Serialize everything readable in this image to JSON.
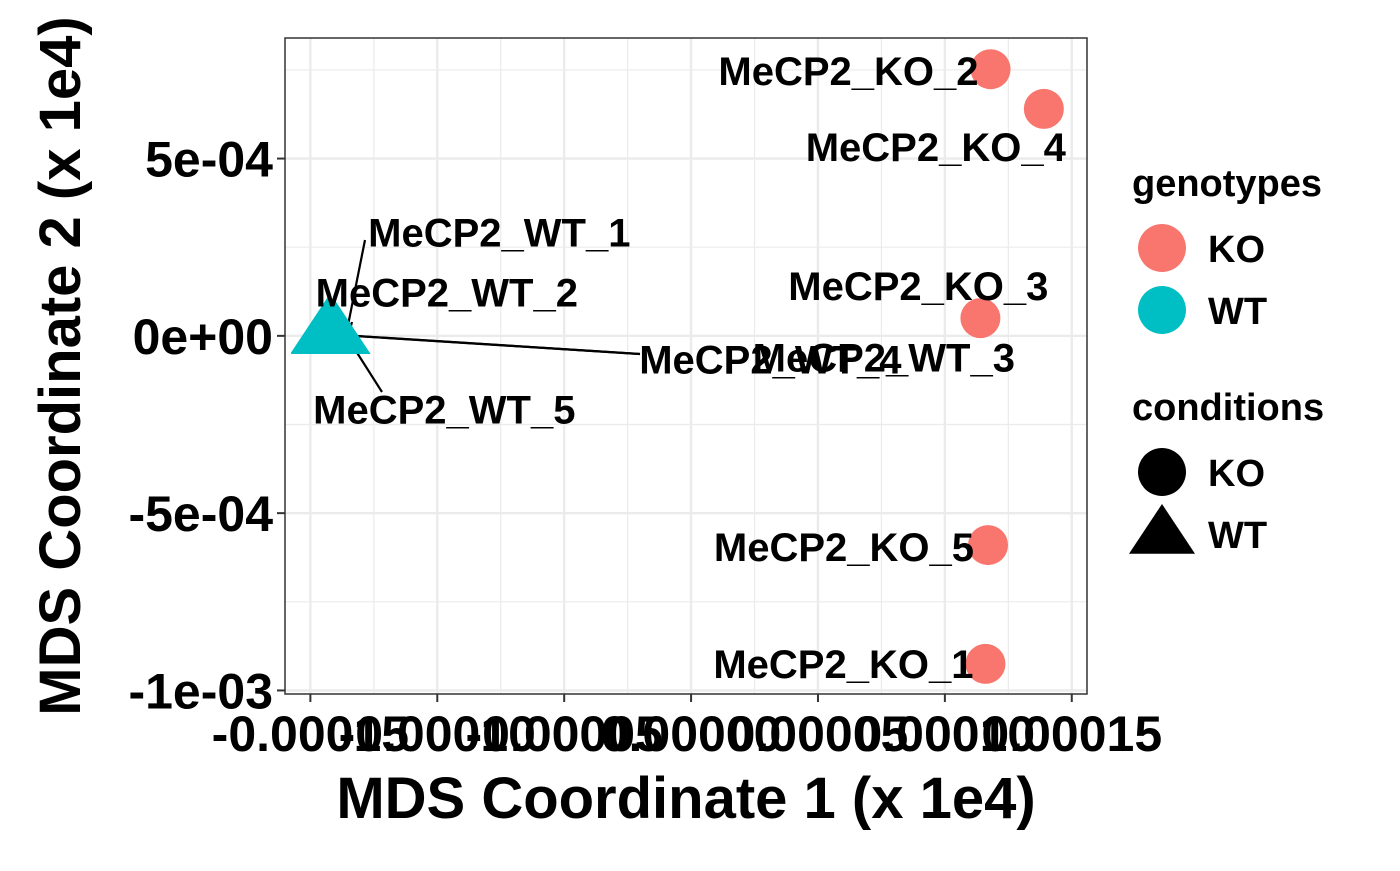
{
  "colors": {
    "KO": "#F8766D",
    "WT": "#00BFC4",
    "grid": "#EBEBEB",
    "panel_border": "#333333"
  },
  "chart_data": {
    "type": "scatter",
    "title": "",
    "xlabel": "MDS Coordinate 1 (x 1e4)",
    "ylabel": "MDS Coordinate 2 (x 1e4)",
    "xlim": [
      -0.00016,
      0.000156
    ],
    "ylim": [
      -0.00101,
      0.00084
    ],
    "x_ticks": [
      {
        "value": -0.00015,
        "label": "-0.00015"
      },
      {
        "value": -0.0001,
        "label": "-0.00010"
      },
      {
        "value": -5e-05,
        "label": "-0.00005"
      },
      {
        "value": 0.0,
        "label": "0.00000"
      },
      {
        "value": 5e-05,
        "label": "0.00005"
      },
      {
        "value": 0.0001,
        "label": "0.00010"
      },
      {
        "value": 0.00015,
        "label": "0.00015"
      }
    ],
    "y_ticks": [
      {
        "value": 0.0005,
        "label": "5e-04"
      },
      {
        "value": 0.0,
        "label": "0e+00"
      },
      {
        "value": -0.0005,
        "label": "-5e-04"
      },
      {
        "value": -0.001,
        "label": "-1e-03"
      }
    ],
    "grid": true,
    "points": [
      {
        "label": "MeCP2_KO_1",
        "x": 0.000116,
        "y": -0.000925,
        "genotype": "KO",
        "condition": "KO"
      },
      {
        "label": "MeCP2_KO_2",
        "x": 0.000118,
        "y": 0.000752,
        "genotype": "KO",
        "condition": "KO"
      },
      {
        "label": "MeCP2_KO_3",
        "x": 0.000114,
        "y": 5e-05,
        "genotype": "KO",
        "condition": "KO"
      },
      {
        "label": "MeCP2_KO_4",
        "x": 0.000139,
        "y": 0.00064,
        "genotype": "KO",
        "condition": "KO"
      },
      {
        "label": "MeCP2_KO_5",
        "x": 0.000117,
        "y": -0.00059,
        "genotype": "KO",
        "condition": "KO"
      },
      {
        "label": "MeCP2_WT_1",
        "x": -0.000143,
        "y": 1.5e-05,
        "genotype": "WT",
        "condition": "WT"
      },
      {
        "label": "MeCP2_WT_2",
        "x": -0.000142,
        "y": 1.5e-05,
        "genotype": "WT",
        "condition": "WT"
      },
      {
        "label": "MeCP2_WT_3",
        "x": -0.000142,
        "y": 1.2e-05,
        "genotype": "WT",
        "condition": "WT"
      },
      {
        "label": "MeCP2_WT_4",
        "x": -0.000141,
        "y": 1.2e-05,
        "genotype": "WT",
        "condition": "WT"
      },
      {
        "label": "MeCP2_WT_5",
        "x": -0.000143,
        "y": 1.2e-05,
        "genotype": "WT",
        "condition": "WT"
      }
    ],
    "legends": [
      {
        "title": "genotypes",
        "kind": "color",
        "entries": [
          {
            "label": "KO",
            "key": "KO"
          },
          {
            "label": "WT",
            "key": "WT"
          }
        ]
      },
      {
        "title": "conditions",
        "kind": "shape",
        "entries": [
          {
            "label": "KO",
            "key": "circle"
          },
          {
            "label": "WT",
            "key": "triangle"
          }
        ]
      }
    ],
    "legend_position": "right"
  }
}
